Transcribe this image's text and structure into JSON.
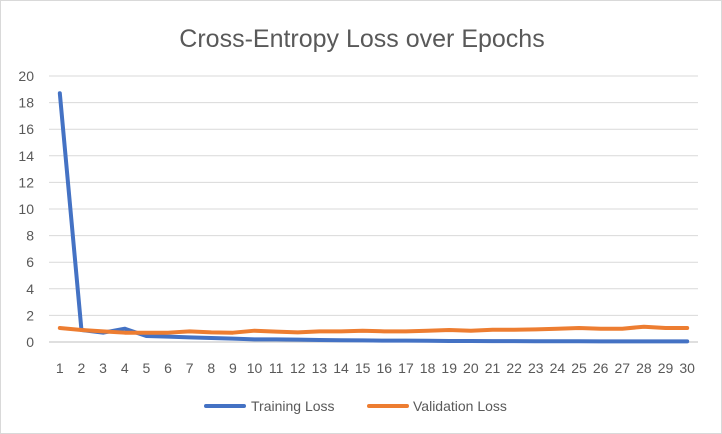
{
  "chart_data": {
    "type": "line",
    "title": "Cross-Entropy Loss over Epochs",
    "xlabel": "",
    "ylabel": "",
    "categories": [
      "1",
      "2",
      "3",
      "4",
      "5",
      "6",
      "7",
      "8",
      "9",
      "10",
      "11",
      "12",
      "13",
      "14",
      "15",
      "16",
      "17",
      "18",
      "19",
      "20",
      "21",
      "22",
      "23",
      "24",
      "25",
      "26",
      "27",
      "28",
      "29",
      "30"
    ],
    "ylim": [
      0,
      20
    ],
    "yticks": [
      "0",
      "2",
      "4",
      "6",
      "8",
      "10",
      "12",
      "14",
      "16",
      "18",
      "20"
    ],
    "grid": true,
    "legend_position": "bottom",
    "series": [
      {
        "name": "Training Loss",
        "color": "#4472C4",
        "values": [
          18.7,
          0.9,
          0.7,
          1.0,
          0.45,
          0.4,
          0.35,
          0.3,
          0.25,
          0.2,
          0.2,
          0.18,
          0.15,
          0.13,
          0.12,
          0.1,
          0.1,
          0.09,
          0.08,
          0.08,
          0.07,
          0.07,
          0.06,
          0.06,
          0.06,
          0.05,
          0.05,
          0.05,
          0.05,
          0.05
        ]
      },
      {
        "name": "Validation Loss",
        "color": "#ED7D31",
        "values": [
          1.05,
          0.9,
          0.8,
          0.7,
          0.7,
          0.7,
          0.8,
          0.72,
          0.7,
          0.85,
          0.78,
          0.72,
          0.8,
          0.8,
          0.85,
          0.8,
          0.8,
          0.85,
          0.9,
          0.85,
          0.92,
          0.92,
          0.95,
          1.0,
          1.05,
          1.0,
          1.0,
          1.15,
          1.05,
          1.05
        ]
      }
    ]
  }
}
